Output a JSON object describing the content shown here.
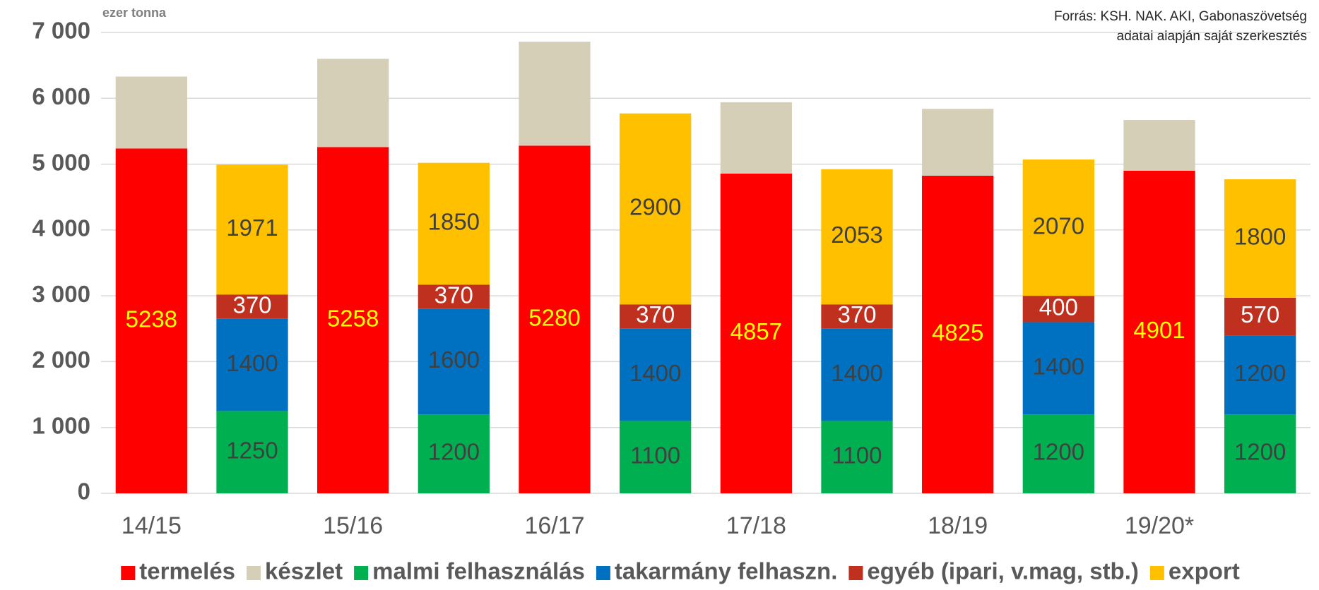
{
  "chart_data": {
    "type": "stacked_bar",
    "unit_label": "ezer tonna",
    "source_note": [
      "Forrás: KSH. NAK. AKI, Gabonaszövetség",
      "adatai alapján saját szerkesztés"
    ],
    "categories": [
      "14/15",
      null,
      "15/16",
      null,
      "16/17",
      null,
      "17/18",
      null,
      "18/19",
      null,
      "19/20*",
      null
    ],
    "series": [
      {
        "name": "termelés",
        "color": "#ff0000",
        "label_color": "#ffff00",
        "values": [
          5238,
          null,
          5258,
          null,
          5280,
          null,
          4857,
          null,
          4825,
          null,
          4901,
          null
        ]
      },
      {
        "name": "készlet",
        "color": "#d6cfb8",
        "values": [
          1092,
          null,
          1342,
          null,
          1580,
          null,
          1083,
          null,
          1015,
          null,
          769,
          null
        ]
      },
      {
        "name": "malmi felhasználás",
        "color": "#00b050",
        "label_color": "#404040",
        "values": [
          null,
          1250,
          null,
          1200,
          null,
          1100,
          null,
          1100,
          null,
          1200,
          null,
          1200
        ]
      },
      {
        "name": "takarmány felhaszn.",
        "color": "#0070c0",
        "label_color": "#404040",
        "values": [
          null,
          1400,
          null,
          1600,
          null,
          1400,
          null,
          1400,
          null,
          1400,
          null,
          1200
        ]
      },
      {
        "name": "egyéb (ipari, v.mag, stb.)",
        "color": "#c0301f",
        "label_color": "#ffffff",
        "values": [
          null,
          370,
          null,
          370,
          null,
          370,
          null,
          370,
          null,
          400,
          null,
          570
        ]
      },
      {
        "name": "export",
        "color": "#ffc000",
        "label_color": "#404040",
        "values": [
          null,
          1971,
          null,
          1850,
          null,
          2900,
          null,
          2053,
          null,
          2070,
          null,
          1800
        ]
      }
    ],
    "ylim": [
      0,
      7000
    ],
    "yticks": [
      0,
      {
        "value": 1000,
        "label": "1 000"
      },
      {
        "value": 2000,
        "label": "2 000"
      },
      {
        "value": 3000,
        "label": "3 000"
      },
      {
        "value": 4000,
        "label": "4 000"
      },
      {
        "value": 5000,
        "label": "5 000"
      },
      {
        "value": 6000,
        "label": "6 000"
      },
      {
        "value": 7000,
        "label": "7 000"
      }
    ],
    "grid": true,
    "legend": "bottom"
  }
}
